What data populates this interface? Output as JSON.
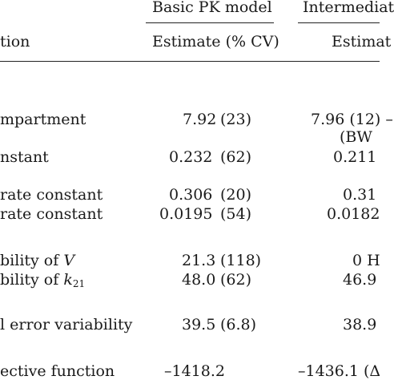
{
  "header": {
    "basic_model": "Basic PK model",
    "intermediate_model": "Intermediat",
    "estimate_label_basic": "Estimate (% CV)",
    "estimate_label_inter": "Estimat",
    "param_col": "tion"
  },
  "rows": [
    {
      "label": "mpartment",
      "basic_est": "7.92",
      "basic_cv": "(23)",
      "inter": "7.96 (12) –",
      "inter2": "(BW"
    },
    {
      "label": "nstant",
      "basic_est": "0.232",
      "basic_cv": "(62)",
      "inter": "0.211"
    },
    {
      "label": "rate constant",
      "basic_est": "0.306",
      "basic_cv": "(20)",
      "inter": "0.31"
    },
    {
      "label": "rate constant",
      "basic_est": "0.0195",
      "basic_cv": "(54)",
      "inter": "0.0182"
    },
    {
      "label_prefix": "bility of ",
      "label_var": "V",
      "basic_est": "21.3",
      "basic_cv": "(118)",
      "inter": "0 H"
    },
    {
      "label_prefix": "bility of ",
      "label_var": "k",
      "label_sub": "21",
      "basic_est": "48.0",
      "basic_cv": "(62)",
      "inter": "46.9"
    },
    {
      "label": "l error variability",
      "basic_est": "39.5",
      "basic_cv": "(6.8)",
      "inter": "38.9"
    },
    {
      "label": "ective function",
      "basic_est": "–1418.2",
      "basic_cv": "",
      "inter": "–1436.1 (Δ"
    }
  ]
}
